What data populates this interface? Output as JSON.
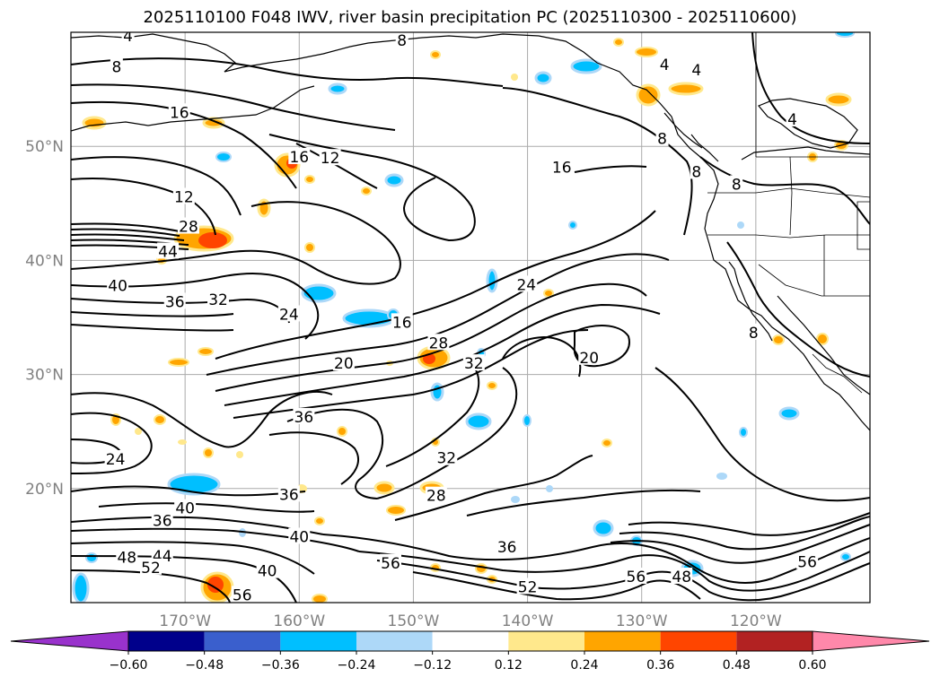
{
  "title": "2025110100 F048 IWV, river basin precipitation PC (2025110300 - 2025110600)",
  "map": {
    "projection": "equirectangular",
    "lon_range": [
      -180,
      -110
    ],
    "lat_range": [
      10,
      60
    ],
    "lat_ticks": [
      {
        "value": 50,
        "label": "50°N"
      },
      {
        "value": 40,
        "label": "40°N"
      },
      {
        "value": 30,
        "label": "30°N"
      },
      {
        "value": 20,
        "label": "20°N"
      }
    ],
    "lon_ticks": [
      {
        "value": -170,
        "label": "170°W"
      },
      {
        "value": -160,
        "label": "160°W"
      },
      {
        "value": -150,
        "label": "150°W"
      },
      {
        "value": -140,
        "label": "140°W"
      },
      {
        "value": -130,
        "label": "130°W"
      },
      {
        "value": -120,
        "label": "120°W"
      }
    ],
    "grid": true
  },
  "contour_labels": [
    {
      "text": "4",
      "lon": -175,
      "lat": 59.6
    },
    {
      "text": "8",
      "lon": -151,
      "lat": 59.2
    },
    {
      "text": "8",
      "lon": -176,
      "lat": 56.9
    },
    {
      "text": "4",
      "lon": -128,
      "lat": 57.1
    },
    {
      "text": "4",
      "lon": -125.2,
      "lat": 56.6
    },
    {
      "text": "8",
      "lon": -128.2,
      "lat": 50.6
    },
    {
      "text": "4",
      "lon": -116.8,
      "lat": 52.3
    },
    {
      "text": "16",
      "lon": -170.5,
      "lat": 52.9
    },
    {
      "text": "16",
      "lon": -160,
      "lat": 49
    },
    {
      "text": "12",
      "lon": -157.3,
      "lat": 48.9
    },
    {
      "text": "16",
      "lon": -137,
      "lat": 48.1
    },
    {
      "text": "8",
      "lon": -125.2,
      "lat": 47.7
    },
    {
      "text": "12",
      "lon": -170.1,
      "lat": 45.5
    },
    {
      "text": "28",
      "lon": -169.7,
      "lat": 42.9
    },
    {
      "text": "44",
      "lon": -171.5,
      "lat": 40.7
    },
    {
      "text": "40",
      "lon": -175.9,
      "lat": 37.7
    },
    {
      "text": "36",
      "lon": -170.9,
      "lat": 36.3
    },
    {
      "text": "32",
      "lon": -167.1,
      "lat": 36.5
    },
    {
      "text": "24",
      "lon": -160.9,
      "lat": 35.2
    },
    {
      "text": "16",
      "lon": -151,
      "lat": 34.5
    },
    {
      "text": "24",
      "lon": -140.1,
      "lat": 37.8
    },
    {
      "text": "28",
      "lon": -147.8,
      "lat": 32.7
    },
    {
      "text": "32",
      "lon": -144.7,
      "lat": 30.9
    },
    {
      "text": "20",
      "lon": -156.1,
      "lat": 30.9
    },
    {
      "text": "20",
      "lon": -134.6,
      "lat": 31.4
    },
    {
      "text": "8",
      "lon": -121.7,
      "lat": 46.6
    },
    {
      "text": "8",
      "lon": -120.2,
      "lat": 33.6
    },
    {
      "text": "36",
      "lon": -159.6,
      "lat": 26.2
    },
    {
      "text": "24",
      "lon": -176.1,
      "lat": 22.5
    },
    {
      "text": "32",
      "lon": -147.1,
      "lat": 22.6
    },
    {
      "text": "36",
      "lon": -160.9,
      "lat": 19.4
    },
    {
      "text": "28",
      "lon": -148,
      "lat": 19.3
    },
    {
      "text": "40",
      "lon": -170,
      "lat": 18.2
    },
    {
      "text": "36",
      "lon": -172,
      "lat": 17.1
    },
    {
      "text": "40",
      "lon": -160,
      "lat": 15.7
    },
    {
      "text": "48",
      "lon": -175.1,
      "lat": 13.9
    },
    {
      "text": "44",
      "lon": -172,
      "lat": 14
    },
    {
      "text": "52",
      "lon": -173,
      "lat": 13
    },
    {
      "text": "56",
      "lon": -165,
      "lat": 10.6
    },
    {
      "text": "40",
      "lon": -162.8,
      "lat": 12.7
    },
    {
      "text": "56",
      "lon": -152,
      "lat": 13.4
    },
    {
      "text": "36",
      "lon": -141.8,
      "lat": 14.8
    },
    {
      "text": "52",
      "lon": -140,
      "lat": 11.3
    },
    {
      "text": "56",
      "lon": -130.5,
      "lat": 12.2
    },
    {
      "text": "48",
      "lon": -126.5,
      "lat": 12.2
    },
    {
      "text": "56",
      "lon": -115.5,
      "lat": 13.5
    }
  ],
  "colorbar": {
    "ticks": [
      "−0.60",
      "−0.48",
      "−0.36",
      "−0.24",
      "−0.12",
      "0.12",
      "0.24",
      "0.36",
      "0.48",
      "0.60"
    ],
    "colors": [
      "#9932cc",
      "#00008b",
      "#3a5fcd",
      "#00bfff",
      "#add8f8",
      "#ffffff",
      "#ffe88c",
      "#ffa500",
      "#ff4500",
      "#b22222",
      "#ff88aa"
    ],
    "extend": "both"
  }
}
